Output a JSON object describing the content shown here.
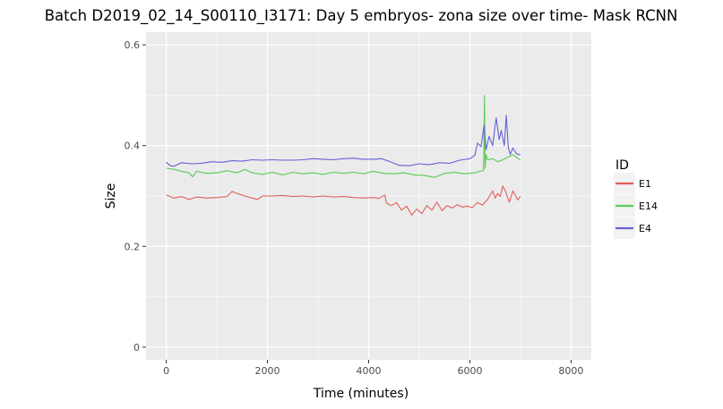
{
  "chart_data": {
    "type": "line",
    "title": "Batch D2019_02_14_S00110_I3171: Day 5 embryos- zona size over time- Mask RCNN",
    "xlabel": "Time (minutes)",
    "ylabel": "Size",
    "xlim": [
      -400,
      8400
    ],
    "ylim": [
      -0.025,
      0.625
    ],
    "x_ticks": [
      0,
      2000,
      4000,
      6000,
      8000
    ],
    "x_tick_labels": [
      "0",
      "2000",
      "4000",
      "6000",
      "8000"
    ],
    "y_ticks": [
      0.0,
      0.2,
      0.4,
      0.6
    ],
    "y_tick_labels": [
      "0",
      "0.2",
      "0.4",
      "0.6"
    ],
    "legend": {
      "title": "ID",
      "position": "right"
    },
    "panel_background": "#ebebeb",
    "grid_color": "#ffffff",
    "series": [
      {
        "name": "E1",
        "color": "#e0605a",
        "points": [
          [
            0,
            0.302
          ],
          [
            150,
            0.296
          ],
          [
            300,
            0.299
          ],
          [
            450,
            0.293
          ],
          [
            600,
            0.298
          ],
          [
            800,
            0.296
          ],
          [
            1000,
            0.297
          ],
          [
            1200,
            0.299
          ],
          [
            1300,
            0.309
          ],
          [
            1400,
            0.305
          ],
          [
            1550,
            0.3
          ],
          [
            1700,
            0.296
          ],
          [
            1800,
            0.293
          ],
          [
            1900,
            0.3
          ],
          [
            2100,
            0.3
          ],
          [
            2300,
            0.301
          ],
          [
            2500,
            0.299
          ],
          [
            2700,
            0.3
          ],
          [
            2900,
            0.298
          ],
          [
            3100,
            0.3
          ],
          [
            3300,
            0.298
          ],
          [
            3500,
            0.299
          ],
          [
            3700,
            0.297
          ],
          [
            3900,
            0.296
          ],
          [
            4100,
            0.297
          ],
          [
            4200,
            0.295
          ],
          [
            4320,
            0.302
          ],
          [
            4350,
            0.286
          ],
          [
            4450,
            0.281
          ],
          [
            4550,
            0.287
          ],
          [
            4650,
            0.272
          ],
          [
            4750,
            0.28
          ],
          [
            4850,
            0.262
          ],
          [
            4950,
            0.274
          ],
          [
            5050,
            0.265
          ],
          [
            5150,
            0.281
          ],
          [
            5250,
            0.272
          ],
          [
            5350,
            0.288
          ],
          [
            5450,
            0.271
          ],
          [
            5550,
            0.281
          ],
          [
            5650,
            0.276
          ],
          [
            5750,
            0.283
          ],
          [
            5850,
            0.278
          ],
          [
            5950,
            0.28
          ],
          [
            6050,
            0.277
          ],
          [
            6150,
            0.287
          ],
          [
            6250,
            0.282
          ],
          [
            6350,
            0.293
          ],
          [
            6450,
            0.31
          ],
          [
            6500,
            0.296
          ],
          [
            6550,
            0.305
          ],
          [
            6600,
            0.299
          ],
          [
            6650,
            0.32
          ],
          [
            6700,
            0.31
          ],
          [
            6780,
            0.288
          ],
          [
            6850,
            0.31
          ],
          [
            6950,
            0.292
          ],
          [
            7000,
            0.3
          ]
        ]
      },
      {
        "name": "E14",
        "color": "#58cb55",
        "points": [
          [
            0,
            0.355
          ],
          [
            150,
            0.353
          ],
          [
            300,
            0.349
          ],
          [
            450,
            0.346
          ],
          [
            520,
            0.338
          ],
          [
            600,
            0.349
          ],
          [
            800,
            0.345
          ],
          [
            1000,
            0.346
          ],
          [
            1200,
            0.35
          ],
          [
            1400,
            0.346
          ],
          [
            1550,
            0.353
          ],
          [
            1700,
            0.346
          ],
          [
            1900,
            0.343
          ],
          [
            2100,
            0.347
          ],
          [
            2300,
            0.342
          ],
          [
            2500,
            0.347
          ],
          [
            2700,
            0.344
          ],
          [
            2900,
            0.346
          ],
          [
            3100,
            0.343
          ],
          [
            3300,
            0.347
          ],
          [
            3500,
            0.345
          ],
          [
            3700,
            0.347
          ],
          [
            3900,
            0.344
          ],
          [
            4100,
            0.349
          ],
          [
            4300,
            0.345
          ],
          [
            4500,
            0.344
          ],
          [
            4700,
            0.346
          ],
          [
            4900,
            0.342
          ],
          [
            5100,
            0.341
          ],
          [
            5300,
            0.337
          ],
          [
            5500,
            0.345
          ],
          [
            5700,
            0.347
          ],
          [
            5900,
            0.344
          ],
          [
            6100,
            0.346
          ],
          [
            6200,
            0.349
          ],
          [
            6270,
            0.351
          ],
          [
            6290,
            0.5
          ],
          [
            6300,
            0.355
          ],
          [
            6320,
            0.382
          ],
          [
            6350,
            0.372
          ],
          [
            6450,
            0.374
          ],
          [
            6550,
            0.368
          ],
          [
            6650,
            0.372
          ],
          [
            6750,
            0.377
          ],
          [
            6850,
            0.382
          ],
          [
            6950,
            0.375
          ],
          [
            7000,
            0.371
          ]
        ]
      },
      {
        "name": "E4",
        "color": "#6460d8",
        "points": [
          [
            0,
            0.367
          ],
          [
            80,
            0.36
          ],
          [
            150,
            0.359
          ],
          [
            300,
            0.366
          ],
          [
            500,
            0.364
          ],
          [
            700,
            0.365
          ],
          [
            900,
            0.368
          ],
          [
            1100,
            0.367
          ],
          [
            1300,
            0.37
          ],
          [
            1500,
            0.369
          ],
          [
            1700,
            0.372
          ],
          [
            1900,
            0.371
          ],
          [
            2100,
            0.372
          ],
          [
            2300,
            0.371
          ],
          [
            2500,
            0.371
          ],
          [
            2700,
            0.372
          ],
          [
            2900,
            0.374
          ],
          [
            3100,
            0.373
          ],
          [
            3300,
            0.372
          ],
          [
            3500,
            0.374
          ],
          [
            3700,
            0.375
          ],
          [
            3900,
            0.373
          ],
          [
            4100,
            0.373
          ],
          [
            4250,
            0.374
          ],
          [
            4400,
            0.369
          ],
          [
            4600,
            0.361
          ],
          [
            4800,
            0.36
          ],
          [
            5000,
            0.364
          ],
          [
            5200,
            0.362
          ],
          [
            5400,
            0.366
          ],
          [
            5600,
            0.365
          ],
          [
            5800,
            0.371
          ],
          [
            6000,
            0.374
          ],
          [
            6100,
            0.381
          ],
          [
            6150,
            0.405
          ],
          [
            6220,
            0.398
          ],
          [
            6280,
            0.44
          ],
          [
            6320,
            0.392
          ],
          [
            6380,
            0.418
          ],
          [
            6450,
            0.4
          ],
          [
            6520,
            0.455
          ],
          [
            6580,
            0.412
          ],
          [
            6620,
            0.43
          ],
          [
            6680,
            0.4
          ],
          [
            6720,
            0.46
          ],
          [
            6760,
            0.395
          ],
          [
            6800,
            0.383
          ],
          [
            6850,
            0.395
          ],
          [
            6920,
            0.384
          ],
          [
            7000,
            0.381
          ]
        ]
      }
    ]
  }
}
